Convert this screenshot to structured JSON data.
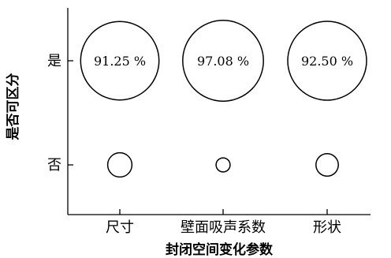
{
  "chart_data": {
    "type": "scatter",
    "title": "",
    "xlabel": "封闭空间变化参数",
    "ylabel": "是否可区分",
    "categories": [
      "尺寸",
      "壁面吸声系数",
      "形状"
    ],
    "y_categories": [
      "否",
      "是"
    ],
    "grid": false,
    "legend": "none",
    "series": [
      {
        "points": [
          {
            "x": "尺寸",
            "y": "是",
            "value": 91.25,
            "label": "91.25 %"
          },
          {
            "x": "壁面吸声系数",
            "y": "是",
            "value": 97.08,
            "label": "97.08 %"
          },
          {
            "x": "形状",
            "y": "是",
            "value": 92.5,
            "label": "92.50 %"
          },
          {
            "x": "尺寸",
            "y": "否",
            "value": 8.75
          },
          {
            "x": "壁面吸声系数",
            "y": "否",
            "value": 2.92
          },
          {
            "x": "形状",
            "y": "否",
            "value": 7.5
          }
        ]
      }
    ]
  }
}
